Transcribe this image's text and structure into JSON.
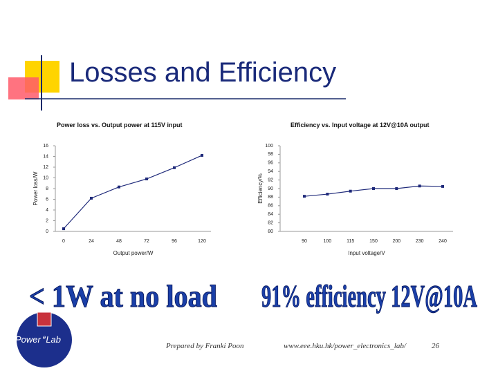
{
  "slide": {
    "title": "Losses and Efficiency",
    "banner_left": "< 1W at no load",
    "banner_right": "91% efficiency 12V@10A",
    "logo": {
      "prefix": "Power",
      "sup": "e",
      "suffix": "Lab"
    },
    "footer_author": "Prepared by Franki Poon",
    "footer_url": "www.eee.hku.hk/power_electronics_lab/",
    "page_number": "26"
  },
  "chart_data": [
    {
      "type": "line",
      "title": "Power loss vs. Output power at 115V input",
      "x_label": "Output power/W",
      "y_label": "Power loss/W",
      "categories": [
        "0",
        "24",
        "48",
        "72",
        "96",
        "120"
      ],
      "values": [
        0.5,
        6.2,
        8.3,
        9.8,
        11.9,
        14.2
      ],
      "color": "#1f2a7a",
      "ylim": [
        0,
        16
      ],
      "yticks": [
        0,
        2,
        4,
        6,
        8,
        10,
        12,
        14,
        16
      ]
    },
    {
      "type": "line",
      "title": "Efficiency vs. Input voltage at 12V@10A  output",
      "x_label": "Input voltage/V",
      "y_label": "Efficiency/%",
      "categories": [
        "90",
        "100",
        "115",
        "150",
        "200",
        "230",
        "240"
      ],
      "values": [
        88.2,
        88.7,
        89.4,
        90,
        90,
        90.6,
        90.5
      ],
      "color": "#1f2a7a",
      "ylim": [
        80,
        100
      ],
      "yticks": [
        80,
        82,
        84,
        86,
        88,
        90,
        92,
        94,
        96,
        98,
        100
      ]
    }
  ]
}
